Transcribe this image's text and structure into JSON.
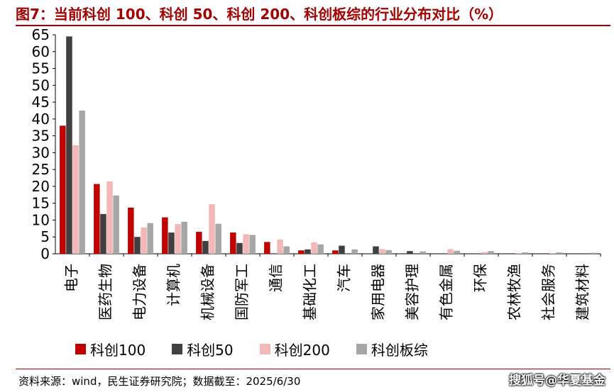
{
  "header": {
    "title": "图7：当前科创 100、科创 50、科创 200、科创板综的行业分布对比（%）"
  },
  "footer": {
    "source": "资料来源：wind，民生证券研究院；数据截至：2025/6/30",
    "watermark": "搜狐号@华夏基金"
  },
  "colors": {
    "科创100": "#c00000",
    "科创50": "#404040",
    "科创200": "#f2b8b8",
    "科创板综": "#a6a6a6"
  },
  "chart_data": {
    "type": "bar",
    "title": "图7：当前科创 100、科创 50、科创 200、科创板综的行业分布对比（%）",
    "categories": [
      "电子",
      "医药生物",
      "电力设备",
      "计算机",
      "机械设备",
      "国防军工",
      "通信",
      "基础化工",
      "汽车",
      "家用电器",
      "美容护理",
      "有色金属",
      "环保",
      "农林牧渔",
      "社会服务",
      "建筑材料"
    ],
    "series": [
      {
        "name": "科创100",
        "values": [
          38,
          20.7,
          13.7,
          10.8,
          6.5,
          6.3,
          3.5,
          1.0,
          1.0,
          0,
          0,
          0,
          0,
          0,
          0,
          0
        ]
      },
      {
        "name": "科创50",
        "values": [
          64.5,
          11.8,
          5.0,
          6.3,
          3.8,
          3.2,
          0,
          1.3,
          2.4,
          2.2,
          0.8,
          0,
          0,
          0,
          0,
          0
        ]
      },
      {
        "name": "科创200",
        "values": [
          32.2,
          21.5,
          7.8,
          8.8,
          14.7,
          5.8,
          4.2,
          3.4,
          0,
          1.4,
          0,
          1.4,
          0.5,
          0.2,
          0.2,
          0
        ]
      },
      {
        "name": "科创板综",
        "values": [
          42.5,
          17.3,
          9.1,
          9.5,
          8.9,
          5.6,
          2.2,
          2.8,
          1.3,
          1.1,
          0.7,
          0.9,
          0.8,
          0.4,
          0.4,
          0.3
        ]
      }
    ],
    "ylim": [
      0,
      65
    ],
    "yticks": [
      0,
      5,
      10,
      15,
      20,
      25,
      30,
      35,
      40,
      45,
      50,
      55,
      60,
      65
    ],
    "xlabel": "",
    "ylabel": "",
    "grid": false,
    "legend": "bottom"
  }
}
